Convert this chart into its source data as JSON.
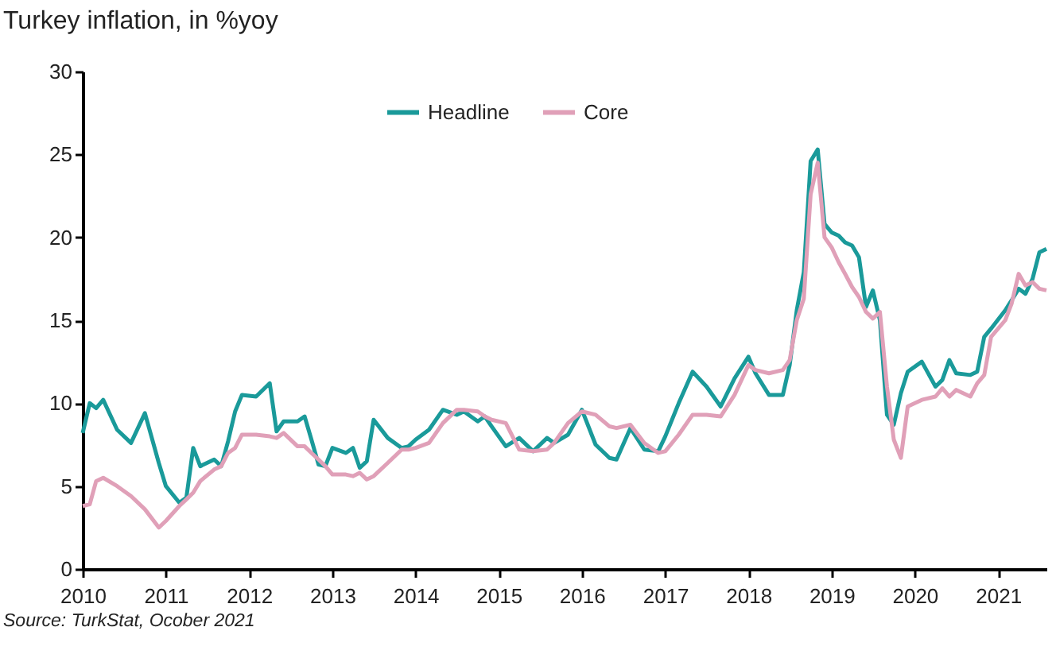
{
  "chart_data": {
    "type": "line",
    "title": "Turkey inflation, in %yoy",
    "annotations": [
      "Source: TurkStat, Ocober 2021"
    ],
    "x": [
      "2010-01",
      "2010-02",
      "2010-03",
      "2010-04",
      "2010-06",
      "2010-08",
      "2010-10",
      "2010-12",
      "2011-01",
      "2011-03",
      "2011-04",
      "2011-05",
      "2011-06",
      "2011-08",
      "2011-09",
      "2011-10",
      "2011-11",
      "2011-12",
      "2012-02",
      "2012-04",
      "2012-05",
      "2012-06",
      "2012-08",
      "2012-09",
      "2012-10",
      "2012-11",
      "2012-12",
      "2013-01",
      "2013-03",
      "2013-04",
      "2013-05",
      "2013-06",
      "2013-07",
      "2013-09",
      "2013-11",
      "2013-12",
      "2014-01",
      "2014-03",
      "2014-05",
      "2014-07",
      "2014-08",
      "2014-10",
      "2014-11",
      "2014-12",
      "2015-02",
      "2015-04",
      "2015-06",
      "2015-08",
      "2015-09",
      "2015-11",
      "2016-01",
      "2016-03",
      "2016-05",
      "2016-06",
      "2016-08",
      "2016-10",
      "2016-12",
      "2017-01",
      "2017-03",
      "2017-05",
      "2017-07",
      "2017-09",
      "2017-11",
      "2018-01",
      "2018-02",
      "2018-04",
      "2018-06",
      "2018-07",
      "2018-08",
      "2018-09",
      "2018-10",
      "2018-11",
      "2018-12",
      "2019-01",
      "2019-02",
      "2019-03",
      "2019-04",
      "2019-05",
      "2019-06",
      "2019-07",
      "2019-08",
      "2019-09",
      "2019-10",
      "2019-11",
      "2019-12",
      "2020-02",
      "2020-04",
      "2020-05",
      "2020-06",
      "2020-07",
      "2020-09",
      "2020-10",
      "2020-11",
      "2020-12",
      "2021-02",
      "2021-03",
      "2021-04",
      "2021-05",
      "2021-06",
      "2021-07",
      "2021-08"
    ],
    "series": [
      {
        "name": "Headline",
        "color": "#1a9a9a",
        "values": [
          8.2,
          10.0,
          9.7,
          10.2,
          8.4,
          7.6,
          9.4,
          6.4,
          5.0,
          4.0,
          4.3,
          7.3,
          6.2,
          6.6,
          6.2,
          7.7,
          9.5,
          10.5,
          10.4,
          11.2,
          8.3,
          8.9,
          8.9,
          9.2,
          7.8,
          6.3,
          6.2,
          7.3,
          7.0,
          7.3,
          6.1,
          6.5,
          9.0,
          7.9,
          7.3,
          7.4,
          7.8,
          8.4,
          9.6,
          9.3,
          9.5,
          8.9,
          9.2,
          8.6,
          7.4,
          7.9,
          7.1,
          7.9,
          7.6,
          8.1,
          9.6,
          7.5,
          6.7,
          6.6,
          8.5,
          7.2,
          7.1,
          8.0,
          10.0,
          11.9,
          11.0,
          9.8,
          11.5,
          12.8,
          11.8,
          10.5,
          10.5,
          12.3,
          15.6,
          17.9,
          24.6,
          25.3,
          20.8,
          20.3,
          20.1,
          19.7,
          19.5,
          18.8,
          15.8,
          16.8,
          15.0,
          9.3,
          8.7,
          10.6,
          11.9,
          12.5,
          11.0,
          11.4,
          12.6,
          11.8,
          11.7,
          11.9,
          14.0,
          14.5,
          15.6,
          16.2,
          16.9,
          16.6,
          17.5,
          19.1,
          19.3
        ]
      },
      {
        "name": "Core",
        "color": "#e0a0b8",
        "values": [
          3.8,
          3.9,
          5.3,
          5.5,
          5.0,
          4.4,
          3.6,
          2.5,
          2.9,
          3.8,
          4.2,
          4.6,
          5.3,
          6.0,
          6.2,
          7.0,
          7.3,
          8.1,
          8.1,
          8.0,
          7.9,
          8.2,
          7.4,
          7.4,
          7.0,
          6.6,
          6.2,
          5.7,
          5.7,
          5.6,
          5.8,
          5.4,
          5.6,
          6.4,
          7.2,
          7.2,
          7.3,
          7.6,
          8.8,
          9.6,
          9.6,
          9.5,
          9.2,
          9.0,
          8.8,
          7.2,
          7.1,
          7.2,
          7.6,
          8.8,
          9.5,
          9.3,
          8.6,
          8.5,
          8.7,
          7.6,
          7.0,
          7.1,
          8.1,
          9.3,
          9.3,
          9.2,
          10.5,
          12.3,
          12.0,
          11.8,
          12.0,
          12.6,
          15.0,
          16.3,
          22.6,
          24.5,
          20.0,
          19.4,
          18.5,
          17.8,
          17.0,
          16.4,
          15.5,
          15.1,
          15.5,
          11.0,
          7.8,
          6.7,
          9.8,
          10.2,
          10.4,
          10.9,
          10.4,
          10.8,
          10.4,
          11.2,
          11.7,
          14.0,
          15.0,
          16.0,
          17.8,
          17.1,
          17.3,
          16.9,
          16.8
        ]
      }
    ],
    "xlim": [
      "2010-01",
      "2021-08"
    ],
    "xticks": [
      "2010",
      "2011",
      "2012",
      "2013",
      "2014",
      "2015",
      "2016",
      "2017",
      "2018",
      "2019",
      "2020",
      "2021"
    ],
    "ylim": [
      0,
      30
    ],
    "yticks": [
      0,
      5,
      10,
      15,
      20,
      25,
      30
    ],
    "grid": false,
    "legend": "top"
  }
}
